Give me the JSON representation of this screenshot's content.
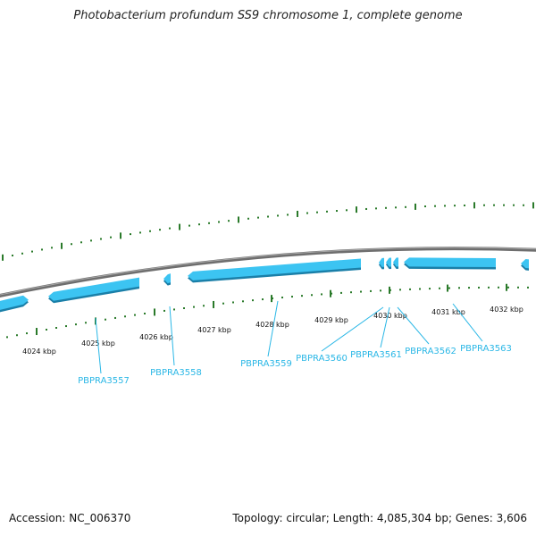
{
  "title": "Photobacterium profundum SS9 chromosome 1, complete genome",
  "footer": {
    "accession": "Accession: NC_006370",
    "stats": "Topology: circular; Length: 4,085,304 bp; Genes: 3,606"
  },
  "kbp_labels": [
    "4024 kbp",
    "4025 kbp",
    "4026 kbp",
    "4027 kbp",
    "4028 kbp",
    "4029 kbp",
    "4030 kbp",
    "4031 kbp",
    "4032 kbp"
  ],
  "genes": [
    "PBPRA3557",
    "PBPRA3558",
    "PBPRA3559",
    "PBPRA3560",
    "PBPRA3561",
    "PBPRA3562",
    "PBPRA3563"
  ],
  "colors": {
    "gene_fill": "#3cc4f2",
    "gene_shadow": "#1a7fa8",
    "backbone": "#777777",
    "tick": "#2a7a2a",
    "label": "#2ab7e6"
  }
}
